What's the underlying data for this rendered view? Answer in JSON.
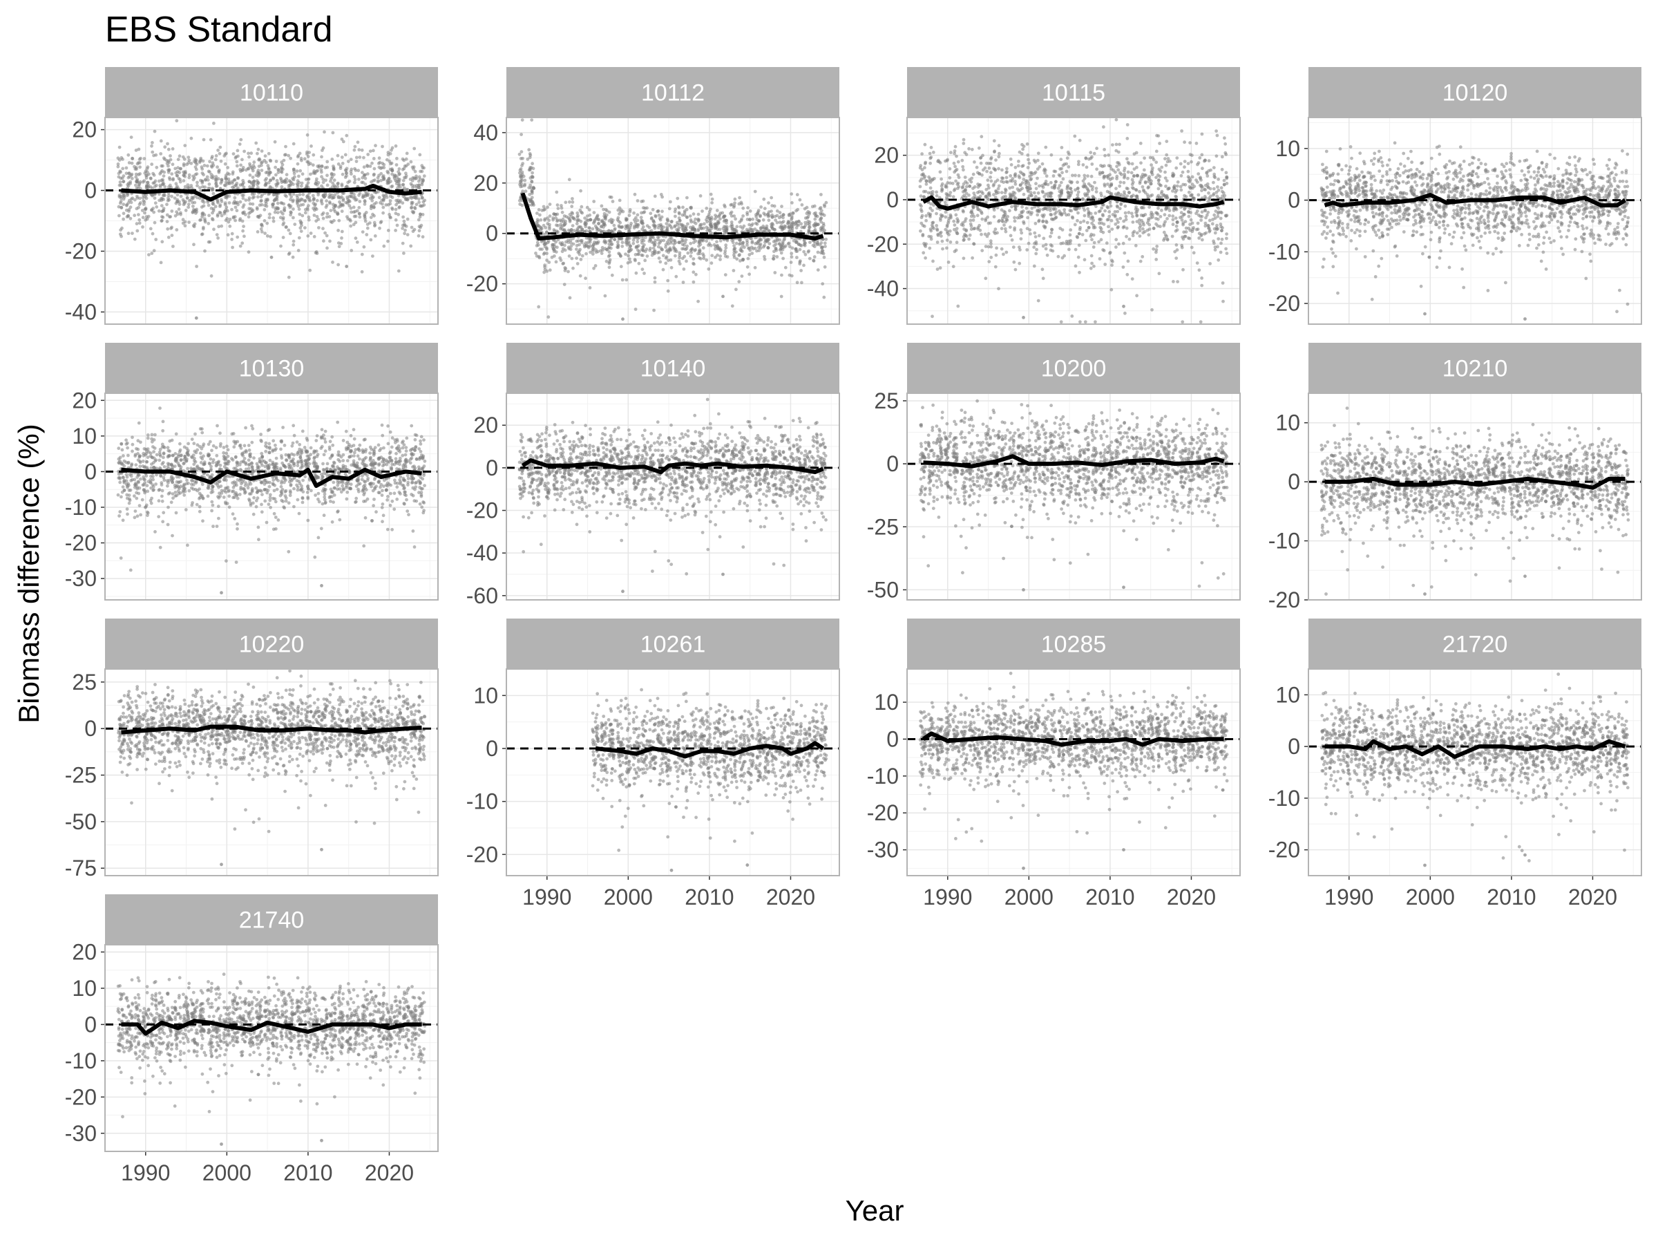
{
  "chart_data": {
    "type": "scatter",
    "title": "EBS Standard",
    "xlabel": "Year",
    "ylabel": "Biomass difference (%)",
    "xlim": [
      1985,
      2026
    ],
    "x_ticks": [
      1990,
      2000,
      2010,
      2020
    ],
    "grid": true,
    "reference_line": 0,
    "point_color": "#808080",
    "line_color": "#000000",
    "strip_color": "#b3b3b3",
    "panels": [
      {
        "label": "10110",
        "ylim": [
          -44,
          24
        ],
        "y_ticks": [
          20,
          0,
          -20,
          -40
        ],
        "years": [
          1987,
          2024
        ],
        "spread": 7,
        "lows": [
          -42,
          -22,
          -25
        ],
        "mean": [
          [
            1987,
            0
          ],
          [
            1990,
            -0.5
          ],
          [
            1993,
            0
          ],
          [
            1996,
            -0.5
          ],
          [
            1998,
            -3
          ],
          [
            2000,
            -0.5
          ],
          [
            2003,
            0
          ],
          [
            2006,
            -0.3
          ],
          [
            2010,
            0
          ],
          [
            2014,
            0
          ],
          [
            2017,
            0.5
          ],
          [
            2018,
            1.5
          ],
          [
            2020,
            -0.5
          ],
          [
            2022,
            -1
          ],
          [
            2024,
            -0.5
          ]
        ]
      },
      {
        "label": "10112",
        "ylim": [
          -36,
          46
        ],
        "y_ticks": [
          40,
          20,
          0,
          -20
        ],
        "years": [
          1987,
          2024
        ],
        "spread": 6,
        "lows": [
          -34,
          -25
        ],
        "mean": [
          [
            1987,
            16
          ],
          [
            1988,
            6
          ],
          [
            1989,
            -2
          ],
          [
            1991,
            -1.5
          ],
          [
            1994,
            -0.5
          ],
          [
            1997,
            -1
          ],
          [
            2000,
            -0.5
          ],
          [
            2004,
            0
          ],
          [
            2008,
            -1
          ],
          [
            2012,
            -1.5
          ],
          [
            2016,
            -0.5
          ],
          [
            2020,
            -0.5
          ],
          [
            2023,
            -2
          ],
          [
            2024,
            -1
          ]
        ]
      },
      {
        "label": "10115",
        "ylim": [
          -56,
          37
        ],
        "y_ticks": [
          20,
          0,
          -20,
          -40
        ],
        "years": [
          1987,
          2024
        ],
        "spread": 12,
        "lows": [
          -53,
          -48
        ],
        "mean": [
          [
            1987,
            -1
          ],
          [
            1988,
            1
          ],
          [
            1989,
            -3
          ],
          [
            1990,
            -4
          ],
          [
            1993,
            -1
          ],
          [
            1995,
            -3
          ],
          [
            1998,
            -1
          ],
          [
            2001,
            -2
          ],
          [
            2004,
            -2
          ],
          [
            2006,
            -2.5
          ],
          [
            2009,
            -1
          ],
          [
            2010,
            1
          ],
          [
            2013,
            -1
          ],
          [
            2016,
            -2
          ],
          [
            2019,
            -2
          ],
          [
            2021,
            -3
          ],
          [
            2023,
            -2
          ],
          [
            2024,
            -1
          ]
        ]
      },
      {
        "label": "10120",
        "ylim": [
          -24,
          16
        ],
        "y_ticks": [
          10,
          0,
          -10,
          -20
        ],
        "years": [
          1987,
          2024
        ],
        "spread": 4,
        "lows": [
          -22,
          -23
        ],
        "mean": [
          [
            1987,
            -1
          ],
          [
            1988,
            -0.5
          ],
          [
            1989,
            -1
          ],
          [
            1992,
            -0.5
          ],
          [
            1995,
            -0.5
          ],
          [
            1998,
            0
          ],
          [
            2000,
            1
          ],
          [
            2002,
            -0.5
          ],
          [
            2005,
            0
          ],
          [
            2008,
            0
          ],
          [
            2011,
            0.5
          ],
          [
            2014,
            0.5
          ],
          [
            2016,
            -0.5
          ],
          [
            2019,
            0.5
          ],
          [
            2021,
            -1
          ],
          [
            2023,
            -1
          ],
          [
            2024,
            0
          ]
        ]
      },
      {
        "label": "10130",
        "ylim": [
          -36,
          22
        ],
        "y_ticks": [
          20,
          10,
          0,
          -10,
          -20,
          -30
        ],
        "years": [
          1987,
          2024
        ],
        "spread": 5,
        "lows": [
          -34,
          -32
        ],
        "mean": [
          [
            1987,
            0.5
          ],
          [
            1990,
            0
          ],
          [
            1993,
            0
          ],
          [
            1996,
            -1.5
          ],
          [
            1998,
            -3
          ],
          [
            2000,
            0
          ],
          [
            2003,
            -2
          ],
          [
            2006,
            -0.5
          ],
          [
            2009,
            -1
          ],
          [
            2010,
            0.5
          ],
          [
            2011,
            -4
          ],
          [
            2013,
            -1.5
          ],
          [
            2015,
            -2
          ],
          [
            2017,
            0.5
          ],
          [
            2019,
            -1.5
          ],
          [
            2022,
            0
          ],
          [
            2024,
            -0.5
          ]
        ]
      },
      {
        "label": "10140",
        "ylim": [
          -62,
          35
        ],
        "y_ticks": [
          20,
          0,
          -20,
          -40,
          -60
        ],
        "years": [
          1987,
          2024
        ],
        "spread": 9,
        "lows": [
          -58,
          -50
        ],
        "mean": [
          [
            1987,
            1
          ],
          [
            1988,
            3.5
          ],
          [
            1990,
            1
          ],
          [
            1993,
            1
          ],
          [
            1996,
            2
          ],
          [
            1999,
            0
          ],
          [
            2002,
            0.5
          ],
          [
            2004,
            -2
          ],
          [
            2005,
            1
          ],
          [
            2007,
            2
          ],
          [
            2009,
            1
          ],
          [
            2011,
            2
          ],
          [
            2014,
            0.5
          ],
          [
            2017,
            1
          ],
          [
            2020,
            0
          ],
          [
            2023,
            -2
          ],
          [
            2024,
            -0.5
          ]
        ]
      },
      {
        "label": "10200",
        "ylim": [
          -54,
          28
        ],
        "y_ticks": [
          25,
          0,
          -25,
          -50
        ],
        "years": [
          1987,
          2024
        ],
        "spread": 9,
        "lows": [
          -50,
          -49
        ],
        "mean": [
          [
            1987,
            0.5
          ],
          [
            1990,
            0
          ],
          [
            1993,
            -1
          ],
          [
            1996,
            1
          ],
          [
            1998,
            3
          ],
          [
            2000,
            0
          ],
          [
            2003,
            0
          ],
          [
            2006,
            0.5
          ],
          [
            2009,
            -0.5
          ],
          [
            2012,
            1
          ],
          [
            2015,
            1.5
          ],
          [
            2018,
            0
          ],
          [
            2021,
            0.5
          ],
          [
            2023,
            2
          ],
          [
            2024,
            1
          ]
        ]
      },
      {
        "label": "10210",
        "ylim": [
          -20,
          15
        ],
        "y_ticks": [
          10,
          0,
          -10,
          -20
        ],
        "years": [
          1987,
          2024
        ],
        "spread": 3.5,
        "lows": [
          -19,
          -16
        ],
        "mean": [
          [
            1987,
            0
          ],
          [
            1990,
            0
          ],
          [
            1993,
            0.5
          ],
          [
            1996,
            -0.5
          ],
          [
            2000,
            -0.5
          ],
          [
            2003,
            0
          ],
          [
            2006,
            -0.5
          ],
          [
            2009,
            0
          ],
          [
            2012,
            0.5
          ],
          [
            2015,
            0
          ],
          [
            2018,
            -0.5
          ],
          [
            2020,
            -1
          ],
          [
            2022,
            0.5
          ],
          [
            2024,
            0.5
          ]
        ]
      },
      {
        "label": "10220",
        "ylim": [
          -79,
          32
        ],
        "y_ticks": [
          25,
          0,
          -25,
          -50,
          -75
        ],
        "years": [
          1987,
          2024
        ],
        "spread": 10,
        "lows": [
          -73,
          -65
        ],
        "mean": [
          [
            1987,
            -2
          ],
          [
            1990,
            -1
          ],
          [
            1993,
            0
          ],
          [
            1996,
            -1
          ],
          [
            1998,
            1
          ],
          [
            2001,
            1
          ],
          [
            2004,
            -1
          ],
          [
            2007,
            -1
          ],
          [
            2010,
            0
          ],
          [
            2013,
            -1
          ],
          [
            2015,
            -1
          ],
          [
            2017,
            -2
          ],
          [
            2019,
            -1
          ],
          [
            2022,
            0
          ],
          [
            2024,
            0.5
          ]
        ]
      },
      {
        "label": "10261",
        "ylim": [
          -24,
          15
        ],
        "y_ticks": [
          10,
          0,
          -10,
          -20
        ],
        "years": [
          1996,
          2024
        ],
        "spread": 4,
        "lows": [
          -23,
          -22
        ],
        "mean": [
          [
            1996,
            0
          ],
          [
            1999,
            -0.5
          ],
          [
            2001,
            -1
          ],
          [
            2003,
            0
          ],
          [
            2005,
            -0.5
          ],
          [
            2007,
            -1.5
          ],
          [
            2009,
            -0.5
          ],
          [
            2011,
            -0.5
          ],
          [
            2013,
            -1
          ],
          [
            2015,
            0
          ],
          [
            2017,
            0.5
          ],
          [
            2019,
            0
          ],
          [
            2020,
            -1
          ],
          [
            2022,
            0
          ],
          [
            2023,
            1
          ],
          [
            2024,
            0
          ]
        ]
      },
      {
        "label": "10285",
        "ylim": [
          -37,
          19
        ],
        "y_ticks": [
          10,
          0,
          -10,
          -20,
          -30
        ],
        "years": [
          1987,
          2024
        ],
        "spread": 5,
        "lows": [
          -35,
          -30
        ],
        "mean": [
          [
            1987,
            0
          ],
          [
            1988,
            1.5
          ],
          [
            1990,
            -0.5
          ],
          [
            1993,
            0
          ],
          [
            1996,
            0.5
          ],
          [
            1999,
            0
          ],
          [
            2002,
            -0.5
          ],
          [
            2004,
            -1.5
          ],
          [
            2007,
            -0.5
          ],
          [
            2010,
            -0.5
          ],
          [
            2012,
            0
          ],
          [
            2014,
            -1.5
          ],
          [
            2016,
            0
          ],
          [
            2019,
            -0.5
          ],
          [
            2022,
            0
          ],
          [
            2024,
            0
          ]
        ]
      },
      {
        "label": "21720",
        "ylim": [
          -25,
          15
        ],
        "y_ticks": [
          10,
          0,
          -10,
          -20
        ],
        "years": [
          1987,
          2024
        ],
        "spread": 4,
        "lows": [
          -23,
          -21
        ],
        "mean": [
          [
            1987,
            0
          ],
          [
            1990,
            0
          ],
          [
            1992,
            -0.5
          ],
          [
            1993,
            1
          ],
          [
            1995,
            -0.5
          ],
          [
            1997,
            0
          ],
          [
            1999,
            -1.5
          ],
          [
            2001,
            0
          ],
          [
            2003,
            -2
          ],
          [
            2006,
            0
          ],
          [
            2009,
            0
          ],
          [
            2012,
            -0.5
          ],
          [
            2014,
            0
          ],
          [
            2016,
            -0.5
          ],
          [
            2018,
            0
          ],
          [
            2020,
            -0.5
          ],
          [
            2022,
            1
          ],
          [
            2024,
            0
          ]
        ]
      },
      {
        "label": "21740",
        "ylim": [
          -35,
          22
        ],
        "y_ticks": [
          20,
          10,
          0,
          -10,
          -20,
          -30
        ],
        "years": [
          1987,
          2024
        ],
        "spread": 5,
        "lows": [
          -33,
          -32
        ],
        "mean": [
          [
            1987,
            0
          ],
          [
            1989,
            0
          ],
          [
            1990,
            -2.5
          ],
          [
            1992,
            0.5
          ],
          [
            1994,
            -1
          ],
          [
            1996,
            1
          ],
          [
            1998,
            0.5
          ],
          [
            2000,
            -0.5
          ],
          [
            2003,
            -1.5
          ],
          [
            2005,
            0.5
          ],
          [
            2008,
            -1
          ],
          [
            2010,
            -2
          ],
          [
            2013,
            0
          ],
          [
            2016,
            0
          ],
          [
            2018,
            0
          ],
          [
            2020,
            -1
          ],
          [
            2022,
            0
          ],
          [
            2024,
            0
          ]
        ]
      }
    ]
  }
}
